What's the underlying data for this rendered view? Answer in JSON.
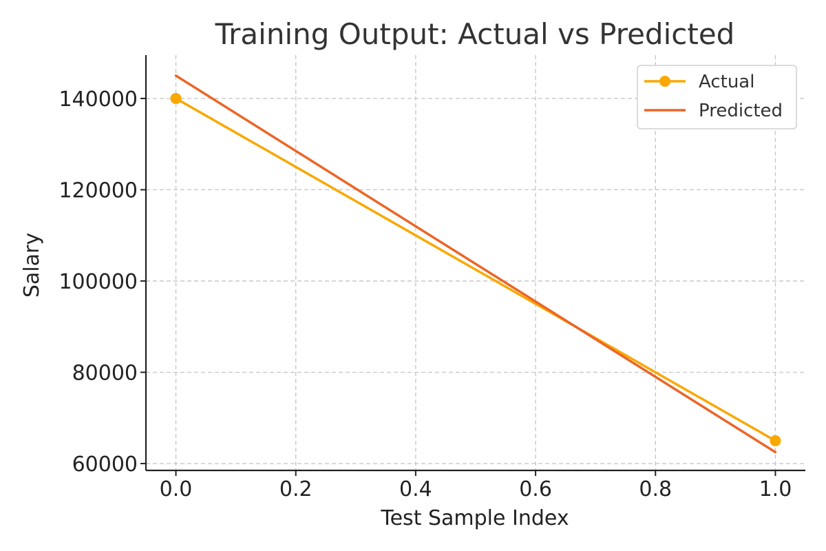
{
  "chart_data": {
    "type": "line",
    "title": "Training Output: Actual vs Predicted",
    "xlabel": "Test Sample Index",
    "ylabel": "Salary",
    "x": [
      0.0,
      1.0
    ],
    "xlim": [
      -0.05,
      1.05
    ],
    "ylim": [
      58500,
      149500
    ],
    "x_ticks": [
      0.0,
      0.2,
      0.4,
      0.6,
      0.8,
      1.0
    ],
    "x_tick_labels": [
      "0.0",
      "0.2",
      "0.4",
      "0.6",
      "0.8",
      "1.0"
    ],
    "y_ticks": [
      60000,
      80000,
      100000,
      120000,
      140000
    ],
    "y_tick_labels": [
      "60000",
      "80000",
      "100000",
      "120000",
      "140000"
    ],
    "grid": true,
    "legend_position": "top-right",
    "series": [
      {
        "name": "Actual",
        "values": [
          140000,
          65000
        ],
        "color": "#F9A800",
        "marker": "circle"
      },
      {
        "name": "Predicted",
        "values": [
          145000,
          62500
        ],
        "color": "#EC6526",
        "marker": "none"
      }
    ]
  }
}
